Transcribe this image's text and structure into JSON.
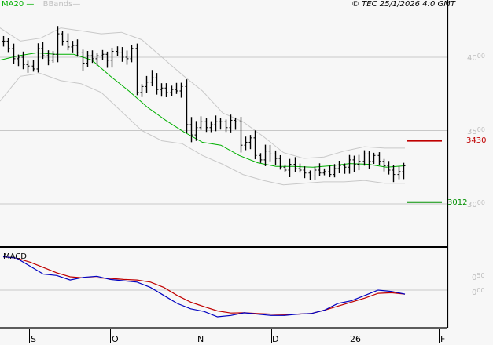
{
  "header": {
    "legend": [
      {
        "label": "MA20",
        "color": "#00b000"
      },
      {
        "label": "BBands",
        "color": "#c0c0c0"
      }
    ],
    "copyright": "© TEC 25/1/2026 4:0 GMT"
  },
  "price_axis": {
    "ticks": [
      {
        "main": "40",
        "sup": "00",
        "value": 4000
      },
      {
        "main": "35",
        "sup": "00",
        "value": 3500
      },
      {
        "main": "30",
        "sup": "00",
        "value": 3000
      }
    ]
  },
  "levels": {
    "resistance": {
      "label": "3430",
      "value": 3430,
      "color": "#c00000"
    },
    "support": {
      "label": "3012",
      "value": 3012,
      "color": "#009000"
    }
  },
  "macd": {
    "title": "MACD",
    "ticks": [
      {
        "main": "0",
        "sup": "50",
        "value": 0.5
      },
      {
        "main": "0",
        "sup": "00",
        "value": 0.0
      }
    ]
  },
  "x_axis": {
    "labels": [
      "S",
      "O",
      "N",
      "D",
      "26",
      "F"
    ]
  },
  "chart_data": [
    {
      "type": "ohlc",
      "title": "Price with MA20 and Bollinger Bands",
      "xlabel": "",
      "ylabel": "",
      "ylim": [
        2770,
        4330
      ],
      "grid": true,
      "x_ticks": [
        "S",
        "O",
        "N",
        "D",
        "26",
        "F"
      ],
      "y_ticks": [
        3000,
        3500,
        4000
      ],
      "series": [
        {
          "name": "Price (approx close)",
          "values": [
            4110,
            4060,
            3990,
            4000,
            3950,
            3940,
            3920,
            4060,
            4010,
            3980,
            4020,
            4160,
            4110,
            4070,
            4080,
            4030,
            3960,
            4010,
            3990,
            4010,
            4020,
            3980,
            4040,
            4030,
            4000,
            3990,
            4060,
            3760,
            3800,
            3830,
            3860,
            3780,
            3790,
            3760,
            3780,
            3770,
            3800,
            3540,
            3470,
            3520,
            3560,
            3520,
            3540,
            3560,
            3560,
            3520,
            3570,
            3560,
            3400,
            3420,
            3450,
            3330,
            3300,
            3360,
            3340,
            3310,
            3250,
            3230,
            3270,
            3240,
            3230,
            3210,
            3190,
            3230,
            3210,
            3220,
            3200,
            3240,
            3260,
            3250,
            3300,
            3270,
            3290,
            3340,
            3290,
            3330,
            3290,
            3260,
            3230,
            3200,
            3220,
            3260
          ]
        },
        {
          "name": "MA20",
          "values": [
            3980,
            4010,
            4030,
            4020,
            4020,
            3980,
            3870,
            3770,
            3660,
            3570,
            3490,
            3420,
            3400,
            3330,
            3280,
            3255,
            3255,
            3250,
            3260,
            3275,
            3270,
            3250,
            3260
          ]
        },
        {
          "name": "BBand upper",
          "values": [
            4200,
            4110,
            4130,
            4200,
            4180,
            4160,
            4170,
            4120,
            4000,
            3880,
            3770,
            3620,
            3560,
            3460,
            3350,
            3310,
            3320,
            3360,
            3390,
            3380,
            3380
          ]
        },
        {
          "name": "BBand lower",
          "values": [
            3700,
            3870,
            3890,
            3840,
            3820,
            3760,
            3630,
            3500,
            3430,
            3410,
            3330,
            3270,
            3200,
            3160,
            3130,
            3140,
            3150,
            3150,
            3160,
            3140,
            3140
          ]
        }
      ],
      "annotations": [
        {
          "label": "3430",
          "value": 3430,
          "color": "#c00000"
        },
        {
          "label": "3012",
          "value": 3012,
          "color": "#009000"
        }
      ]
    },
    {
      "type": "line",
      "title": "MACD",
      "ylim": [
        -1.2,
        1.6
      ],
      "y_ticks": [
        0.0,
        0.5
      ],
      "x_ticks": [
        "S",
        "O",
        "N",
        "D",
        "26",
        "F"
      ],
      "series": [
        {
          "name": "MACD",
          "color": "#0000c0",
          "values": [
            1.25,
            1.2,
            0.9,
            0.6,
            0.55,
            0.38,
            0.48,
            0.52,
            0.4,
            0.35,
            0.3,
            0.1,
            -0.2,
            -0.5,
            -0.7,
            -0.8,
            -1.0,
            -0.95,
            -0.85,
            -0.9,
            -0.95,
            -0.95,
            -0.9,
            -0.88,
            -0.75,
            -0.5,
            -0.4,
            -0.2,
            0.0,
            -0.05,
            -0.15
          ]
        },
        {
          "name": "Signal",
          "color": "#c00000",
          "values": [
            1.25,
            1.2,
            1.05,
            0.85,
            0.65,
            0.5,
            0.46,
            0.46,
            0.44,
            0.4,
            0.38,
            0.3,
            0.1,
            -0.2,
            -0.45,
            -0.62,
            -0.78,
            -0.86,
            -0.85,
            -0.88,
            -0.9,
            -0.92,
            -0.9,
            -0.88,
            -0.75,
            -0.6,
            -0.45,
            -0.3,
            -0.12,
            -0.1,
            -0.15
          ]
        }
      ]
    }
  ]
}
